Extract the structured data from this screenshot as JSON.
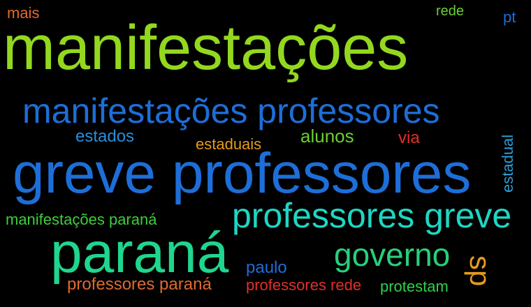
{
  "words": [
    {
      "id": "manifestacoes",
      "text": "manifestações",
      "color": "#93D81E"
    },
    {
      "id": "greve-professores",
      "text": "greve professores",
      "color": "#1D6ED8"
    },
    {
      "id": "manifestacoes-professores",
      "text": "manifestações professores",
      "color": "#1D6ED8"
    },
    {
      "id": "parana",
      "text": "paraná",
      "color": "#1FD68E"
    },
    {
      "id": "professores-greve",
      "text": "professores greve",
      "color": "#1ED6C2"
    },
    {
      "id": "governo",
      "text": "governo",
      "color": "#27D07A"
    },
    {
      "id": "sp",
      "text": "sp",
      "color": "#E69B1B"
    },
    {
      "id": "mais",
      "text": "mais",
      "color": "#E06A2B"
    },
    {
      "id": "rede",
      "text": "rede",
      "color": "#6AD02E"
    },
    {
      "id": "pt",
      "text": "pt",
      "color": "#1D6ED8"
    },
    {
      "id": "estados",
      "text": "estados",
      "color": "#2A8ED8"
    },
    {
      "id": "estaduais",
      "text": "estaduais",
      "color": "#E69B1B"
    },
    {
      "id": "alunos",
      "text": "alunos",
      "color": "#6AD02E"
    },
    {
      "id": "via",
      "text": "via",
      "color": "#E0302A"
    },
    {
      "id": "estadual",
      "text": "estadual",
      "color": "#2A9ED8"
    },
    {
      "id": "manifestacoes-parana",
      "text": "manifestações paraná",
      "color": "#3CCF3C"
    },
    {
      "id": "paulo",
      "text": "paulo",
      "color": "#1D6ED8"
    },
    {
      "id": "professores-parana",
      "text": "professores paraná",
      "color": "#E06A2B"
    },
    {
      "id": "professores-rede",
      "text": "professores rede",
      "color": "#E0302A"
    },
    {
      "id": "protestam",
      "text": "protestam",
      "color": "#2FD04A"
    }
  ]
}
